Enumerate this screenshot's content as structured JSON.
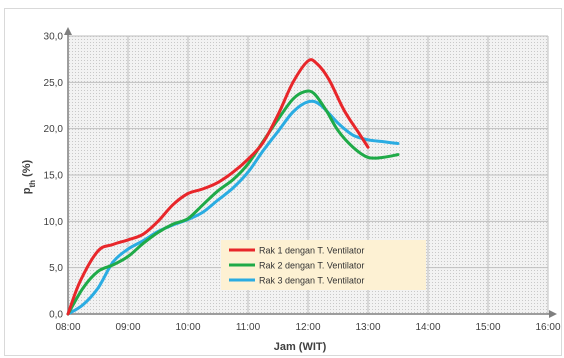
{
  "chart_data": {
    "type": "line",
    "xlabel": "Jam (WIT)",
    "ylabel_main": "p",
    "ylabel_sub": "th",
    "ylabel_unit": " (%)",
    "x_ticks": [
      "08:00",
      "09:00",
      "10:00",
      "11:00",
      "12:00",
      "13:00",
      "14:00",
      "15:00",
      "16:00"
    ],
    "y_ticks": [
      "0,0",
      "5,0",
      "10,0",
      "15,0",
      "20,0",
      "25,0",
      "30,0"
    ],
    "xlim": [
      8,
      16
    ],
    "ylim": [
      0,
      30
    ],
    "grid": true,
    "legend_position": "lower-center",
    "series": [
      {
        "name": "Rak 1 dengan T. Ventilator",
        "color": "#e8262a",
        "x": [
          8.0,
          8.2,
          8.5,
          8.75,
          9.0,
          9.25,
          9.5,
          9.75,
          10.0,
          10.25,
          10.5,
          10.75,
          11.0,
          11.25,
          11.5,
          11.75,
          12.0,
          12.15,
          12.35,
          12.6,
          12.85,
          13.0
        ],
        "y": [
          0.0,
          3.5,
          6.8,
          7.5,
          8.0,
          8.6,
          10.0,
          11.8,
          13.0,
          13.5,
          14.2,
          15.3,
          16.7,
          18.5,
          21.5,
          25.0,
          27.3,
          27.0,
          25.3,
          22.0,
          19.5,
          18.0
        ]
      },
      {
        "name": "Rak 2 dengan T. Ventilator",
        "color": "#1faa48",
        "x": [
          8.0,
          8.25,
          8.5,
          8.75,
          9.0,
          9.25,
          9.5,
          9.75,
          10.0,
          10.25,
          10.5,
          10.75,
          11.0,
          11.25,
          11.5,
          11.75,
          11.95,
          12.1,
          12.3,
          12.5,
          12.75,
          13.0,
          13.25,
          13.5
        ],
        "y": [
          0.0,
          2.8,
          4.6,
          5.3,
          6.2,
          7.6,
          8.8,
          9.7,
          10.3,
          11.8,
          13.3,
          14.5,
          16.2,
          18.6,
          21.0,
          23.2,
          24.0,
          23.8,
          22.0,
          19.8,
          18.0,
          16.9,
          16.9,
          17.2
        ]
      },
      {
        "name": "Rak 3 dengan T. Ventilator",
        "color": "#2aace2",
        "x": [
          8.0,
          8.25,
          8.5,
          8.75,
          9.0,
          9.25,
          9.5,
          9.75,
          10.0,
          10.25,
          10.5,
          10.75,
          11.0,
          11.25,
          11.5,
          11.75,
          12.0,
          12.2,
          12.5,
          12.75,
          13.0,
          13.25,
          13.5
        ],
        "y": [
          0.0,
          1.0,
          2.8,
          5.6,
          7.0,
          7.9,
          8.9,
          9.6,
          10.2,
          11.0,
          12.3,
          13.6,
          15.3,
          17.6,
          19.7,
          21.8,
          22.9,
          22.6,
          20.6,
          19.3,
          18.8,
          18.6,
          18.4
        ]
      }
    ]
  }
}
